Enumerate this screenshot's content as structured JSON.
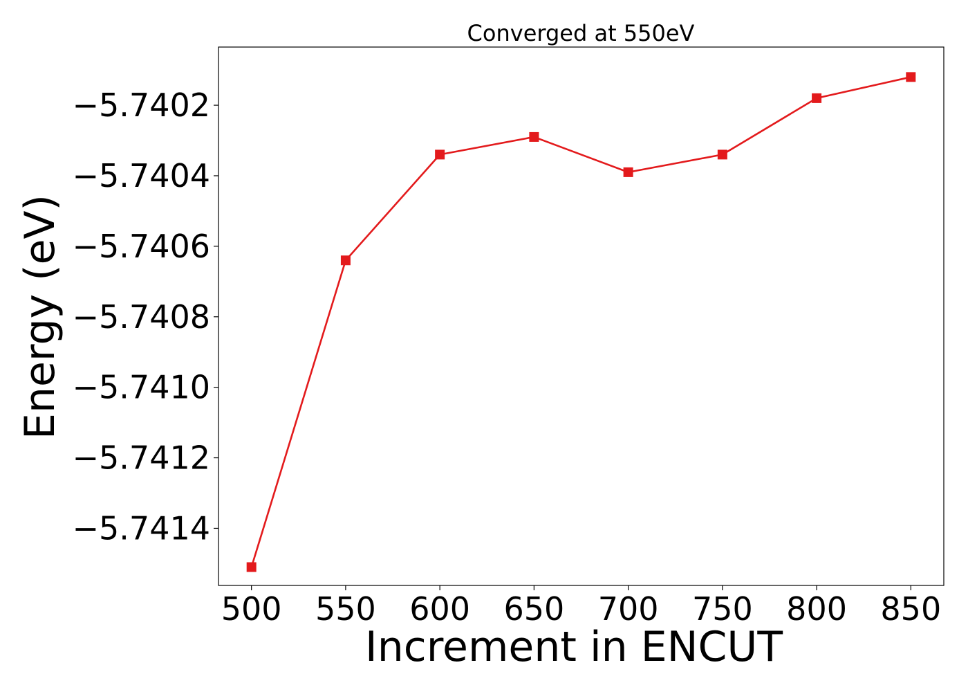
{
  "chart_data": {
    "type": "line",
    "title": "Converged at 550eV",
    "xlabel": "Increment in ENCUT",
    "ylabel": "Energy (eV)",
    "x": [
      500,
      550,
      600,
      650,
      700,
      750,
      800,
      850
    ],
    "series": [
      {
        "values": [
          -5.74151,
          -5.74064,
          -5.74034,
          -5.74029,
          -5.74039,
          -5.74034,
          -5.74018,
          -5.74012
        ],
        "color": "#e31a1c",
        "marker": "square"
      }
    ],
    "xticks": [
      500,
      550,
      600,
      650,
      700,
      750,
      800,
      850
    ],
    "xtick_labels": [
      "500",
      "550",
      "600",
      "650",
      "700",
      "750",
      "800",
      "850"
    ],
    "yticks": [
      -5.7402,
      -5.7404,
      -5.7406,
      -5.7408,
      -5.741,
      -5.7412,
      -5.7414
    ],
    "ytick_labels": [
      "−5.7402",
      "−5.7404",
      "−5.7406",
      "−5.7408",
      "−5.7410",
      "−5.7412",
      "−5.7414"
    ],
    "xlim": [
      482.5,
      867.5
    ],
    "ylim": [
      -5.741562,
      -5.740035
    ],
    "grid": false,
    "legend": "none"
  }
}
